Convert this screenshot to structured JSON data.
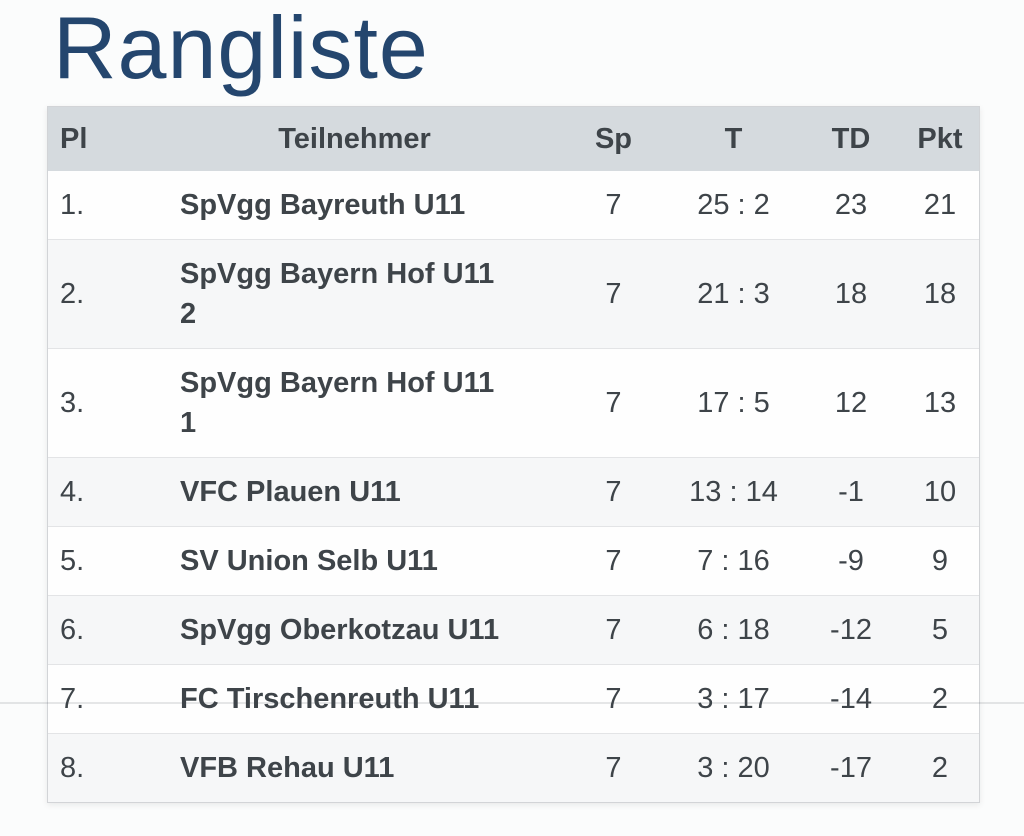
{
  "page": {
    "title": "Rangliste"
  },
  "colors": {
    "title": "#24466e",
    "header_bg": "#d5dade",
    "text": "#3e4449",
    "page_bg": "#fbfcfc",
    "row_alt_bg": "#f6f7f8"
  },
  "table": {
    "columns": [
      {
        "key": "pl",
        "label": "Pl"
      },
      {
        "key": "team",
        "label": "Teilnehmer"
      },
      {
        "key": "sp",
        "label": "Sp"
      },
      {
        "key": "t",
        "label": "T"
      },
      {
        "key": "td",
        "label": "TD"
      },
      {
        "key": "pkt",
        "label": "Pkt"
      }
    ],
    "rows": [
      {
        "pl": "1.",
        "team": "SpVgg Bayreuth U11",
        "sp": "7",
        "t": "25 : 2",
        "td": "23",
        "pkt": "21"
      },
      {
        "pl": "2.",
        "team": "SpVgg Bayern Hof U11\n2",
        "sp": "7",
        "t": "21 : 3",
        "td": "18",
        "pkt": "18"
      },
      {
        "pl": "3.",
        "team": "SpVgg Bayern Hof U11\n1",
        "sp": "7",
        "t": "17 : 5",
        "td": "12",
        "pkt": "13"
      },
      {
        "pl": "4.",
        "team": "VFC Plauen U11",
        "sp": "7",
        "t": "13 : 14",
        "td": "-1",
        "pkt": "10"
      },
      {
        "pl": "5.",
        "team": "SV Union Selb U11",
        "sp": "7",
        "t": "7 : 16",
        "td": "-9",
        "pkt": "9"
      },
      {
        "pl": "6.",
        "team": "SpVgg Oberkotzau U11",
        "sp": "7",
        "t": "6 : 18",
        "td": "-12",
        "pkt": "5"
      },
      {
        "pl": "7.",
        "team": "FC Tirschenreuth U11",
        "sp": "7",
        "t": "3 : 17",
        "td": "-14",
        "pkt": "2"
      },
      {
        "pl": "8.",
        "team": "VFB Rehau U11",
        "sp": "7",
        "t": "3 : 20",
        "td": "-17",
        "pkt": "2"
      }
    ]
  }
}
